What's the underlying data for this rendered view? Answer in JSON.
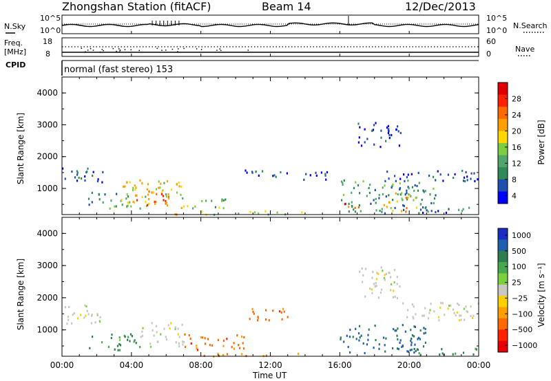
{
  "header": {
    "station": "Zhongshan Station (fitACF)",
    "beam": "Beam 14",
    "date": "12/Dec/2013"
  },
  "left_labels": {
    "nsky": "N.Sky",
    "freq_line1": "Freq.",
    "freq_line2": "[MHz]",
    "cpid": "CPID"
  },
  "right_labels": {
    "nsearch": "N.Search",
    "nave": "Nave"
  },
  "noise_panel": {
    "left_ticks": [
      "10^5",
      "10^0"
    ],
    "right_ticks": [
      "10^5",
      "10^0"
    ]
  },
  "freq_panel": {
    "left_ticks": [
      "18",
      "8"
    ],
    "right_ticks": [
      "60",
      "0"
    ]
  },
  "cpid_text": "normal (fast stereo) 153",
  "colors": {
    "power_scale": [
      "#0000ff",
      "#1f4fb0",
      "#2e8b57",
      "#4fa86a",
      "#7ccd3f",
      "#ffd700",
      "#ff9f00",
      "#ff6a00",
      "#ff2000",
      "#e00000"
    ],
    "velocity_scale": [
      "#1a2ec4",
      "#1f5fb0",
      "#2e7d4f",
      "#48a850",
      "#7cd03c",
      "#c8c8c0",
      "#ffd000",
      "#ff9f00",
      "#ff6a00",
      "#ff2000",
      "#e80000"
    ]
  },
  "chart_data": [
    {
      "type": "heatmap",
      "quantity": "Power",
      "ylabel": "Slant Range [km]",
      "ylim": [
        180,
        4500
      ],
      "y_ticks": [
        "1000",
        "2000",
        "3000",
        "4000"
      ],
      "x_ticks": [
        "00:00",
        "04:00",
        "08:00",
        "12:00",
        "16:00",
        "20:00",
        "00:00"
      ],
      "colorbar": {
        "label": "Power [dB]",
        "ticks": [
          "4",
          "8",
          "12",
          "16",
          "20",
          "24",
          "28"
        ]
      },
      "regions": [
        {
          "t0": 0.0,
          "t1": 2.5,
          "r0": 1200,
          "r1": 1700,
          "level": 6
        },
        {
          "t0": 1.5,
          "t1": 4.0,
          "r0": 400,
          "r1": 900,
          "level": 11
        },
        {
          "t0": 3.3,
          "t1": 7.0,
          "r0": 400,
          "r1": 1300,
          "level": 18
        },
        {
          "t0": 4.0,
          "t1": 6.2,
          "r0": 500,
          "r1": 1000,
          "level": 25
        },
        {
          "t0": 7.0,
          "t1": 9.5,
          "r0": 400,
          "r1": 700,
          "level": 14
        },
        {
          "t0": 6.0,
          "t1": 7.0,
          "r0": 200,
          "r1": 300,
          "level": 26
        },
        {
          "t0": 8.0,
          "t1": 14.0,
          "r0": 200,
          "r1": 320,
          "level": 16
        },
        {
          "t0": 10.5,
          "t1": 13.0,
          "r0": 1300,
          "r1": 1600,
          "level": 6
        },
        {
          "t0": 13.5,
          "t1": 15.5,
          "r0": 1300,
          "r1": 1600,
          "level": 5
        },
        {
          "t0": 16.0,
          "t1": 21.5,
          "r0": 250,
          "r1": 1300,
          "level": 10
        },
        {
          "t0": 16.0,
          "t1": 17.5,
          "r0": 400,
          "r1": 550,
          "level": 26
        },
        {
          "t0": 18.5,
          "t1": 20.5,
          "r0": 400,
          "r1": 900,
          "level": 20
        },
        {
          "t0": 19.0,
          "t1": 20.0,
          "r0": 250,
          "r1": 400,
          "level": 24
        },
        {
          "t0": 20.5,
          "t1": 23.5,
          "r0": 250,
          "r1": 450,
          "level": 9
        },
        {
          "t0": 18.5,
          "t1": 24.0,
          "r0": 1250,
          "r1": 1600,
          "level": 6
        },
        {
          "t0": 17.0,
          "t1": 19.5,
          "r0": 2300,
          "r1": 3100,
          "level": 4
        }
      ]
    },
    {
      "type": "heatmap",
      "quantity": "Velocity",
      "ylabel": "Slant Range [km]",
      "ylim": [
        180,
        4500
      ],
      "y_ticks": [
        "1000",
        "2000",
        "3000",
        "4000"
      ],
      "x_ticks": [
        "00:00",
        "04:00",
        "08:00",
        "12:00",
        "16:00",
        "20:00",
        "00:00"
      ],
      "xlabel": "Time UT",
      "colorbar": {
        "label": "Velocity [m s⁻¹]",
        "ticks": [
          "1000",
          "500",
          "100",
          "25",
          "−25",
          "−100",
          "−500",
          "−1000"
        ]
      },
      "regions": [
        {
          "t0": 0.0,
          "t1": 2.5,
          "r0": 1200,
          "r1": 1800,
          "level": 0
        },
        {
          "t0": 1.5,
          "t1": 4.5,
          "r0": 400,
          "r1": 900,
          "level": 150
        },
        {
          "t0": 4.5,
          "t1": 7.0,
          "r0": 500,
          "r1": 1300,
          "level": 0
        },
        {
          "t0": 7.0,
          "t1": 10.5,
          "r0": 400,
          "r1": 900,
          "level": -200
        },
        {
          "t0": 8.0,
          "t1": 14.0,
          "r0": 200,
          "r1": 320,
          "level": -100
        },
        {
          "t0": 10.5,
          "t1": 13.0,
          "r0": 1300,
          "r1": 1700,
          "level": -200
        },
        {
          "t0": 16.0,
          "t1": 21.0,
          "r0": 300,
          "r1": 1200,
          "level": 300
        },
        {
          "t0": 17.0,
          "t1": 19.5,
          "r0": 2000,
          "r1": 3000,
          "level": 0
        },
        {
          "t0": 19.5,
          "t1": 24.0,
          "r0": 1300,
          "r1": 1900,
          "level": 0
        },
        {
          "t0": 20.0,
          "t1": 24.0,
          "r0": 250,
          "r1": 450,
          "level": 150
        }
      ]
    }
  ]
}
